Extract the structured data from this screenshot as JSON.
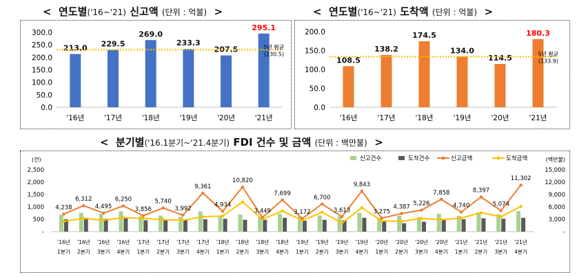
{
  "titles": {
    "report": {
      "open": "<",
      "main": "연도별",
      "range": "('16~'21)",
      "main2": "신고액",
      "unit": "(단위 : 억불)",
      "close": ">"
    },
    "arrival": {
      "open": "<",
      "main": "연도별",
      "range": "('16~'21)",
      "main2": "도착액",
      "unit": "(단위 : 억불)",
      "close": ">"
    },
    "quarterly": {
      "open": "<",
      "main": "분기별",
      "range": "('16.1분기~'21.4분기)",
      "main2": "FDI 건수 및 금액",
      "unit": "(단위 : 백만불)",
      "close": ">"
    }
  },
  "colors": {
    "report_bar": "#4472C4",
    "arrival_bar": "#ED7D31",
    "highlight": "#FF0000",
    "avg_line": "#FFC000",
    "q_report_count": "#A9D18E",
    "q_arrival_count": "#595959",
    "q_report_amount": "#ED7D31",
    "q_arrival_amount": "#FFC000"
  },
  "chart_data": [
    {
      "type": "bar",
      "categories": [
        "'16년",
        "'17년",
        "'18년",
        "'19년",
        "'20년",
        "'21년"
      ],
      "values": [
        213.0,
        229.5,
        269.0,
        233.3,
        207.5,
        295.1
      ],
      "value_labels": [
        "213.0",
        "229.5",
        "269.0",
        "233.3",
        "207.5",
        "295.1"
      ],
      "highlight_index": 5,
      "ylim": [
        0,
        300
      ],
      "yticks": [
        "0.0",
        "50.0",
        "100.0",
        "150.0",
        "200.0",
        "250.0",
        "300.0"
      ],
      "reference_line": {
        "value": 230.5,
        "label": "5년 평균",
        "sublabel": "(230.5)"
      }
    },
    {
      "type": "bar",
      "categories": [
        "'16년",
        "'17년",
        "'18년",
        "'19년",
        "'20년",
        "'21년"
      ],
      "values": [
        108.5,
        138.2,
        174.5,
        134.0,
        114.5,
        180.3
      ],
      "value_labels": [
        "108.5",
        "138.2",
        "174.5",
        "134.0",
        "114.5",
        "180.3"
      ],
      "highlight_index": 5,
      "ylim": [
        0,
        200
      ],
      "yticks": [
        "0.0",
        "50.0",
        "100.0",
        "150.0",
        "200.0"
      ],
      "reference_line": {
        "value": 133.9,
        "label": "5년 평균",
        "sublabel": "(133.9)"
      }
    },
    {
      "type": "bar",
      "categories": [
        [
          "'16년",
          "1분기"
        ],
        [
          "'16년",
          "2분기"
        ],
        [
          "'16년",
          "3분기"
        ],
        [
          "'16년",
          "4분기"
        ],
        [
          "'17년",
          "1분기"
        ],
        [
          "'17년",
          "2분기"
        ],
        [
          "'17년",
          "3분기"
        ],
        [
          "'17년",
          "4분기"
        ],
        [
          "'18년",
          "1분기"
        ],
        [
          "'18년",
          "2분기"
        ],
        [
          "'18년",
          "3분기"
        ],
        [
          "'18년",
          "4분기"
        ],
        [
          "'19년",
          "1분기"
        ],
        [
          "'19년",
          "2분기"
        ],
        [
          "'19년",
          "3분기"
        ],
        [
          "'19년",
          "4분기"
        ],
        [
          "'20년",
          "1분기"
        ],
        [
          "'20년",
          "2분기"
        ],
        [
          "'20년",
          "3분기"
        ],
        [
          "'20년",
          "4분기"
        ],
        [
          "'21년",
          "1분기"
        ],
        [
          "'21년",
          "2분기"
        ],
        [
          "'21년",
          "3분기"
        ],
        [
          "'21년",
          "4분기"
        ]
      ],
      "left_axis": {
        "unit": "(건)",
        "ylim": [
          0,
          2500
        ],
        "ticks": [
          "-",
          "500",
          "1,000",
          "1,500",
          "2,000",
          "2,500"
        ]
      },
      "right_axis": {
        "unit": "(백만불)",
        "ylim": [
          0,
          15000
        ],
        "ticks": [
          "-",
          "3,000",
          "6,000",
          "9,000",
          "12,000",
          "15,000"
        ]
      },
      "series": [
        {
          "name": "신고건수",
          "kind": "bar",
          "axis": "left",
          "values": [
            680,
            760,
            720,
            820,
            620,
            650,
            600,
            820,
            650,
            690,
            600,
            720,
            620,
            650,
            620,
            760,
            560,
            640,
            580,
            720,
            640,
            780,
            700,
            830
          ]
        },
        {
          "name": "도착건수",
          "kind": "bar",
          "axis": "left",
          "values": [
            500,
            560,
            520,
            580,
            460,
            480,
            470,
            500,
            520,
            480,
            480,
            560,
            440,
            480,
            460,
            560,
            420,
            340,
            400,
            500,
            500,
            540,
            520,
            560
          ]
        },
        {
          "name": "신고금액",
          "kind": "line",
          "axis": "right",
          "values": [
            4238,
            6312,
            4495,
            6250,
            3856,
            5740,
            3992,
            9361,
            4934,
            10820,
            3449,
            7699,
            3172,
            6700,
            3613,
            9843,
            3275,
            4387,
            5226,
            7858,
            4740,
            8397,
            5074,
            11302
          ],
          "labels": [
            "4,238",
            "6,312",
            "4,495",
            "6,250",
            "3,856",
            "5,740",
            "3,992",
            "9,361",
            "4,934",
            "10,820",
            "3,449",
            "7,699",
            "3,172",
            "6,700",
            "3,613",
            "9,843",
            "3,275",
            "4,387",
            "5,226",
            "7,858",
            "4,740",
            "8,397",
            "5,074",
            "11,302"
          ]
        },
        {
          "name": "도착금액",
          "kind": "line",
          "axis": "right",
          "values": [
            2500,
            3200,
            2800,
            3400,
            3200,
            2900,
            2800,
            3600,
            3800,
            7200,
            3000,
            5000,
            2700,
            4700,
            2100,
            5800,
            2600,
            2500,
            3200,
            2900,
            3300,
            4600,
            3600,
            6100
          ]
        }
      ],
      "legend": "top-right"
    }
  ]
}
